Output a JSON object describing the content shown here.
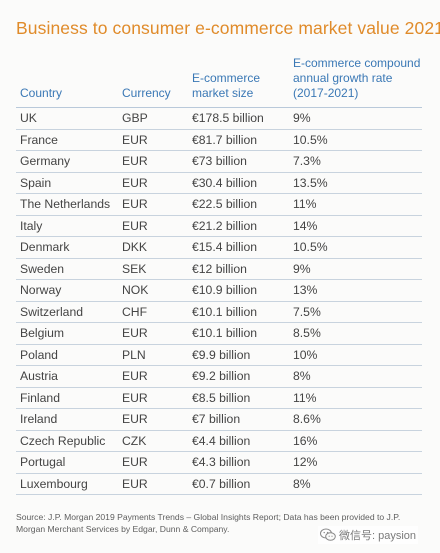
{
  "title": "Business to consumer e-commerce market value 2021",
  "table": {
    "headers": {
      "country": "Country",
      "currency": "Currency",
      "size": "E-commerce market size",
      "growth": "E-commerce compound annual growth rate (2017-2021)"
    },
    "rows": [
      {
        "country": "UK",
        "currency": "GBP",
        "size": "€178.5 billion",
        "growth": "9%"
      },
      {
        "country": "France",
        "currency": "EUR",
        "size": "€81.7 billion",
        "growth": "10.5%"
      },
      {
        "country": "Germany",
        "currency": "EUR",
        "size": "€73 billion",
        "growth": "7.3%"
      },
      {
        "country": "Spain",
        "currency": "EUR",
        "size": "€30.4 billion",
        "growth": "13.5%"
      },
      {
        "country": "The Netherlands",
        "currency": "EUR",
        "size": "€22.5 billion",
        "growth": "11%"
      },
      {
        "country": "Italy",
        "currency": "EUR",
        "size": "€21.2 billion",
        "growth": "14%"
      },
      {
        "country": "Denmark",
        "currency": "DKK",
        "size": "€15.4 billion",
        "growth": "10.5%"
      },
      {
        "country": "Sweden",
        "currency": "SEK",
        "size": "€12 billion",
        "growth": "9%"
      },
      {
        "country": "Norway",
        "currency": "NOK",
        "size": "€10.9 billion",
        "growth": "13%"
      },
      {
        "country": "Switzerland",
        "currency": "CHF",
        "size": "€10.1 billion",
        "growth": "7.5%"
      },
      {
        "country": "Belgium",
        "currency": "EUR",
        "size": "€10.1 billion",
        "growth": "8.5%"
      },
      {
        "country": "Poland",
        "currency": "PLN",
        "size": "€9.9 billion",
        "growth": "10%"
      },
      {
        "country": "Austria",
        "currency": "EUR",
        "size": "€9.2 billion",
        "growth": "8%"
      },
      {
        "country": "Finland",
        "currency": "EUR",
        "size": "€8.5 billion",
        "growth": "11%"
      },
      {
        "country": "Ireland",
        "currency": "EUR",
        "size": "€7 billion",
        "growth": "8.6%"
      },
      {
        "country": "Czech Republic",
        "currency": "CZK",
        "size": "€4.4 billion",
        "growth": "16%"
      },
      {
        "country": "Portugal",
        "currency": "EUR",
        "size": "€4.3 billion",
        "growth": "12%"
      },
      {
        "country": "Luxembourg",
        "currency": "EUR",
        "size": "€0.7 billion",
        "growth": "8%"
      }
    ]
  },
  "source": "Source: J.P. Morgan 2019 Payments Trends – Global Insights Report; Data has been provided to J.P. Morgan Merchant Services by Edgar, Dunn & Company.",
  "watermark": {
    "icon": "wechat-icon",
    "text": "微信号: paysion"
  },
  "colors": {
    "title": "#e08b2a",
    "header": "#3a78b5",
    "rule": "#c8d3de"
  }
}
